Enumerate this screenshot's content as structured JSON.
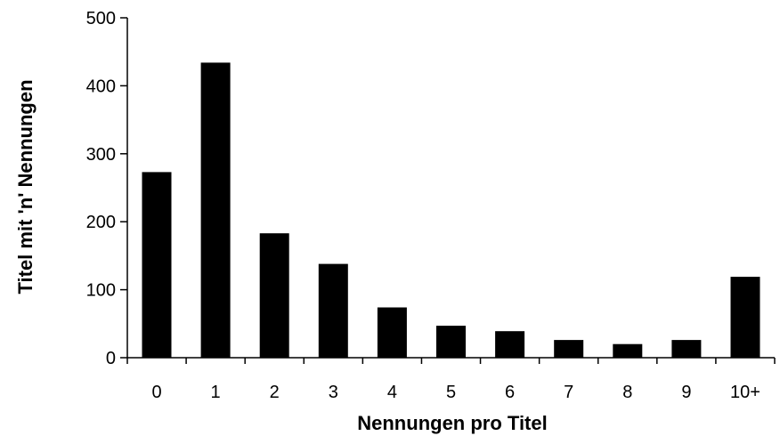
{
  "chart_data": {
    "type": "bar",
    "title": "",
    "xlabel": "Nennungen pro Titel",
    "ylabel": "Titel mit 'n' Nennungen",
    "categories": [
      "0",
      "1",
      "2",
      "3",
      "4",
      "5",
      "6",
      "7",
      "8",
      "9",
      "10+"
    ],
    "values": [
      273,
      434,
      183,
      138,
      74,
      47,
      39,
      26,
      20,
      26,
      119
    ],
    "ylim": [
      0,
      500
    ],
    "yticks": [
      0,
      100,
      200,
      300,
      400,
      500
    ],
    "grid": false,
    "legend": "none",
    "colors": {
      "bar": "#000000",
      "axis": "#000000",
      "background": "#ffffff"
    }
  }
}
